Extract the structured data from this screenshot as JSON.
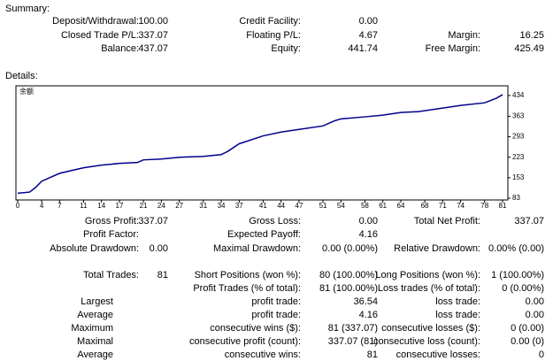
{
  "summary": {
    "title": "Summary:",
    "rows": [
      [
        "Deposit/Withdrawal:",
        "100.00",
        "Credit Facility:",
        "0.00",
        null,
        null
      ],
      [
        "Closed Trade P/L:",
        "337.07",
        "Floating P/L:",
        "4.67",
        "Margin:",
        "16.25"
      ],
      [
        "Balance:",
        "437.07",
        "Equity:",
        "441.74",
        "Free Margin:",
        "425.49"
      ]
    ]
  },
  "details": {
    "title": "Details:",
    "rows": [
      [
        "Gross Profit:",
        "337.07",
        "Gross Loss:",
        "0.00",
        "Total Net Profit:",
        "337.07"
      ],
      [
        "Profit Factor:",
        null,
        "Expected Payoff:",
        "4.16",
        null,
        null
      ],
      [
        "Absolute Drawdown:",
        "0.00",
        "Maximal Drawdown:",
        "0.00 (0.00%)",
        "Relative Drawdown:",
        "0.00% (0.00)"
      ],
      [
        "Total Trades:",
        "81",
        "Short Positions (won %):",
        "80 (100.00%)",
        "Long Positions (won %):",
        "1 (100.00%)"
      ],
      [
        null,
        null,
        "Profit Trades (% of total):",
        "81 (100.00%)",
        "Loss trades (% of total):",
        "0 (0.00%)"
      ]
    ],
    "stats_rows": [
      [
        "Largest",
        "profit trade:",
        "36.54",
        "loss trade:",
        "0.00"
      ],
      [
        "Average",
        "profit trade:",
        "4.16",
        "loss trade:",
        "0.00"
      ],
      [
        "Maximum",
        "consecutive wins ($):",
        "81 (337.07)",
        "consecutive losses ($):",
        "0 (0.00)"
      ],
      [
        "Maximal",
        "consecutive profit (count):",
        "337.07 (81)",
        "consecutive loss (count):",
        "0.00 (0)"
      ],
      [
        "Average",
        "consecutive wins:",
        "81",
        "consecutive losses:",
        "0"
      ]
    ]
  },
  "chart_data": {
    "type": "line",
    "x": [
      0,
      2,
      3,
      4,
      7,
      11,
      14,
      17,
      20,
      21,
      24,
      27,
      31,
      34,
      35,
      37,
      41,
      44,
      47,
      51,
      53,
      54,
      58,
      61,
      64,
      67,
      71,
      74,
      78,
      80,
      81
    ],
    "series": [
      {
        "name": "余额",
        "color": "#00008b",
        "values": [
          100,
          104,
          120,
          141,
          168,
          187,
          196,
          202,
          205,
          214,
          217,
          223,
          226,
          232,
          242,
          269,
          296,
          309,
          318,
          330,
          348,
          354,
          361,
          367,
          376,
          379,
          391,
          400,
          409,
          425,
          437
        ]
      }
    ],
    "xlim": [
      0,
      82
    ],
    "ylim": [
      77,
      467
    ],
    "xticks": [
      0,
      4,
      7,
      11,
      14,
      17,
      21,
      24,
      27,
      31,
      34,
      37,
      41,
      44,
      47,
      51,
      54,
      58,
      61,
      64,
      68,
      71,
      74,
      78,
      81
    ],
    "yticks": [
      83,
      153,
      223,
      293,
      363,
      434
    ]
  }
}
